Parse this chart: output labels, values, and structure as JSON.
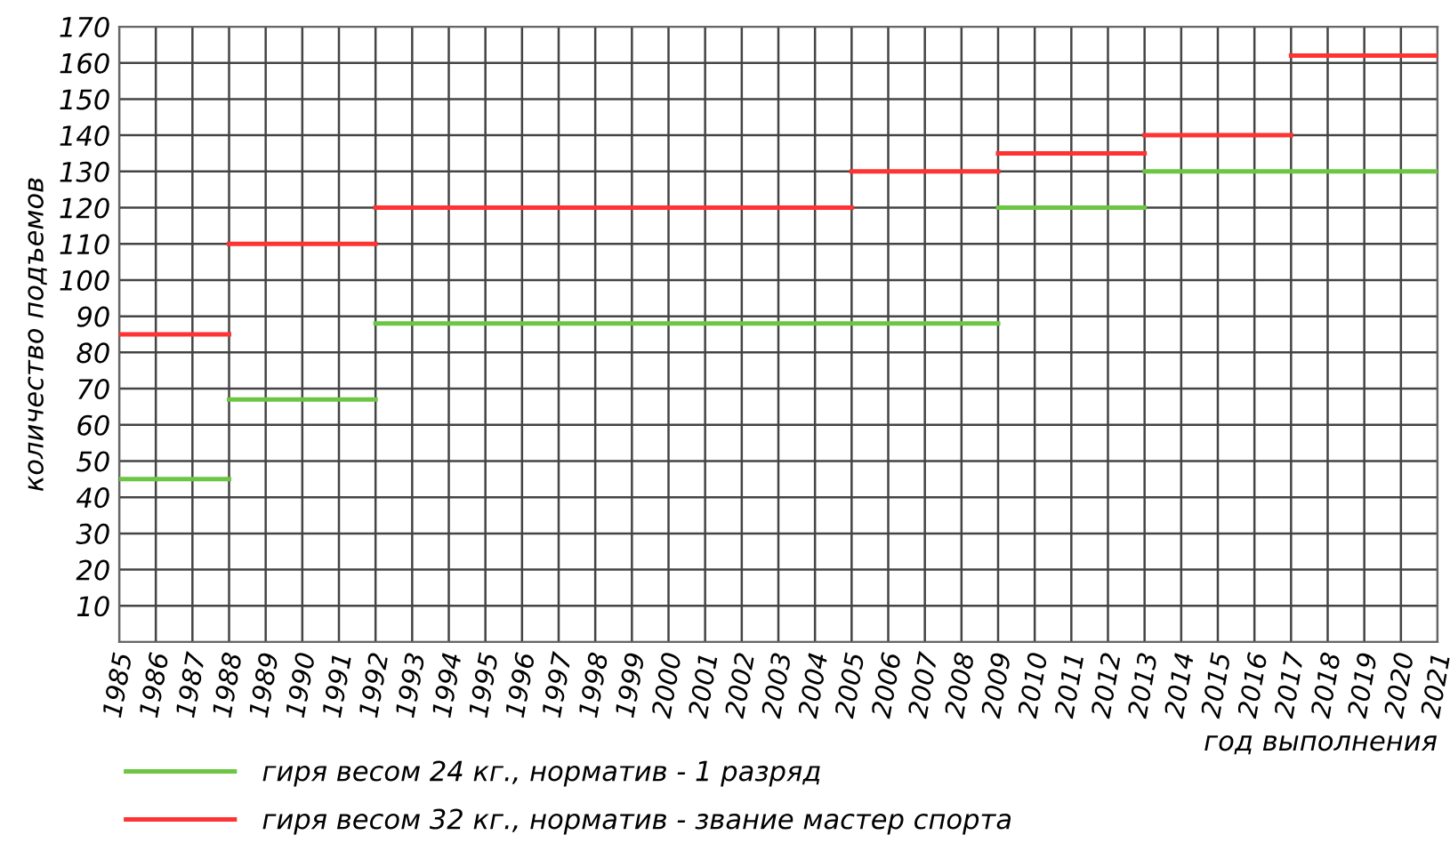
{
  "chart_data": {
    "type": "line",
    "xlabel": "год выполнения",
    "ylabel": "количество подъемов",
    "series": [
      {
        "name": "гиря весом 24 кг., норматив - 1 разряд",
        "color": "#6cc644",
        "x": [
          1985,
          1988,
          null,
          1988,
          1992,
          null,
          1992,
          2009,
          null,
          2009,
          2013,
          null,
          2013,
          2021
        ],
        "values": [
          45,
          45,
          null,
          67,
          67,
          null,
          88,
          88,
          null,
          120,
          120,
          null,
          130,
          130
        ]
      },
      {
        "name": "гиря весом 32 кг., норматив - звание мастер спорта",
        "color": "#ff3333",
        "x": [
          1985,
          1988,
          null,
          1988,
          1992,
          null,
          1992,
          2005,
          null,
          2005,
          2009,
          null,
          2009,
          2013,
          null,
          2013,
          2017,
          null,
          2017,
          2021
        ],
        "values": [
          85,
          85,
          null,
          110,
          110,
          null,
          120,
          120,
          null,
          130,
          130,
          null,
          135,
          135,
          null,
          140,
          140,
          null,
          162,
          162
        ]
      }
    ],
    "xlim": [
      1985,
      2021
    ],
    "xticks": [
      1985,
      1986,
      1987,
      1988,
      1989,
      1990,
      1991,
      1992,
      1993,
      1994,
      1995,
      1996,
      1997,
      1998,
      1999,
      2000,
      2001,
      2002,
      2003,
      2004,
      2005,
      2006,
      2007,
      2008,
      2009,
      2010,
      2011,
      2012,
      2013,
      2014,
      2015,
      2016,
      2017,
      2018,
      2019,
      2020,
      2021
    ],
    "ylim": [
      0,
      170
    ],
    "yticks": [
      {
        "value": 0,
        "label": null
      },
      10,
      20,
      30,
      40,
      50,
      60,
      70,
      80,
      90,
      100,
      110,
      120,
      130,
      140,
      150,
      160,
      170
    ],
    "grid": true,
    "legend": "bottom left",
    "marker": "none",
    "line_style": "solid"
  }
}
